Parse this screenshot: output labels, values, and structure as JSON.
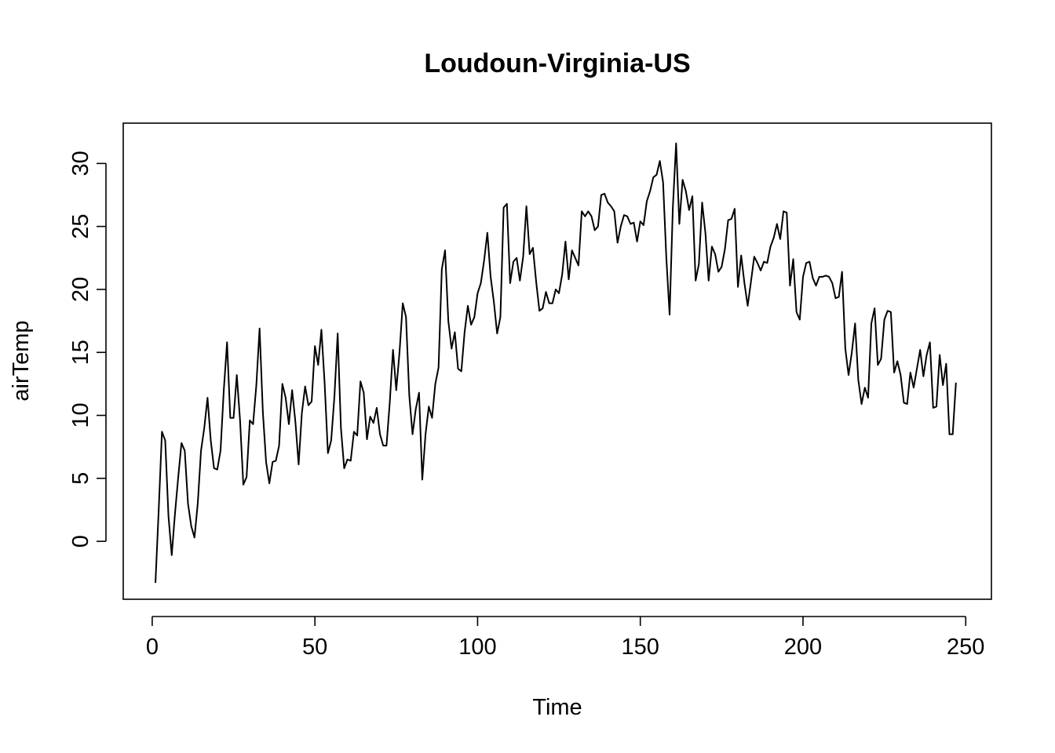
{
  "chart_data": {
    "type": "line",
    "title": "Loudoun-Virginia-US",
    "xlabel": "Time",
    "ylabel": "airTemp",
    "xlim": [
      -8.9,
      257.9
    ],
    "ylim": [
      -4.6,
      33.2
    ],
    "x_ticks": [
      0,
      50,
      100,
      150,
      200,
      250
    ],
    "y_ticks": [
      0,
      5,
      10,
      15,
      20,
      25,
      30
    ],
    "grid": false,
    "legend": "none",
    "line_color": "#000000",
    "series": [
      {
        "x_start": 1,
        "values": [
          -3.3,
          2.5,
          8.7,
          8.0,
          2.0,
          -1.1,
          2.2,
          5.1,
          7.8,
          7.2,
          3.0,
          1.2,
          0.3,
          3.0,
          7.2,
          9.0,
          11.4,
          8.0,
          5.8,
          5.7,
          7.2,
          12.0,
          15.8,
          9.8,
          9.8,
          13.2,
          9.6,
          4.5,
          5.1,
          9.6,
          9.3,
          12.4,
          16.9,
          10.3,
          6.3,
          4.6,
          6.3,
          6.4,
          7.6,
          12.5,
          11.4,
          9.3,
          12.0,
          9.5,
          6.1,
          10.2,
          12.3,
          10.8,
          11.1,
          15.5,
          14.0,
          16.8,
          12.5,
          7.0,
          8.0,
          11.5,
          16.5,
          9.0,
          5.8,
          6.5,
          6.4,
          8.7,
          8.4,
          12.7,
          11.8,
          8.1,
          9.9,
          9.4,
          10.6,
          8.5,
          7.6,
          7.6,
          11.0,
          15.2,
          12.0,
          15.0,
          18.9,
          17.8,
          11.6,
          8.5,
          10.5,
          11.8,
          4.9,
          8.5,
          10.7,
          9.8,
          12.5,
          13.8,
          21.6,
          23.1,
          17.5,
          15.3,
          16.6,
          13.7,
          13.5,
          16.6,
          18.7,
          17.2,
          17.8,
          19.7,
          20.5,
          22.3,
          24.5,
          21.0,
          19.0,
          16.5,
          17.8,
          26.5,
          26.8,
          20.5,
          22.2,
          22.5,
          20.7,
          22.6,
          26.6,
          22.8,
          23.3,
          20.6,
          18.3,
          18.5,
          19.8,
          18.9,
          18.9,
          20.0,
          19.7,
          21.2,
          23.8,
          20.8,
          23.1,
          22.5,
          21.9,
          26.2,
          25.8,
          26.2,
          25.8,
          24.7,
          25.0,
          27.5,
          27.6,
          26.9,
          26.6,
          26.2,
          23.7,
          25.0,
          25.9,
          25.8,
          25.2,
          25.3,
          23.8,
          25.4,
          25.1,
          27.0,
          27.8,
          28.9,
          29.1,
          30.2,
          28.5,
          22.5,
          18.0,
          26.5,
          31.6,
          25.2,
          28.7,
          27.8,
          26.3,
          27.4,
          20.7,
          22.0,
          26.9,
          24.5,
          20.7,
          23.4,
          22.8,
          21.4,
          21.8,
          23.2,
          25.5,
          25.6,
          26.4,
          20.2,
          22.7,
          20.5,
          18.7,
          20.6,
          22.6,
          22.1,
          21.5,
          22.2,
          22.1,
          23.4,
          24.1,
          25.2,
          24.0,
          26.2,
          26.1,
          20.3,
          22.4,
          18.2,
          17.6,
          21.0,
          22.1,
          22.2,
          20.9,
          20.3,
          21.0,
          21.0,
          21.1,
          21.0,
          20.5,
          19.3,
          19.4,
          21.4,
          15.3,
          13.2,
          15.0,
          17.3,
          12.8,
          10.9,
          12.2,
          11.4,
          17.3,
          18.5,
          14.0,
          14.5,
          17.6,
          18.3,
          18.2,
          13.4,
          14.3,
          13.2,
          11.0,
          10.9,
          13.4,
          12.2,
          13.7,
          15.2,
          13.1,
          14.8,
          15.8,
          10.6,
          10.7,
          14.8,
          12.4,
          14.1,
          8.5,
          8.5,
          12.6
        ]
      }
    ]
  }
}
